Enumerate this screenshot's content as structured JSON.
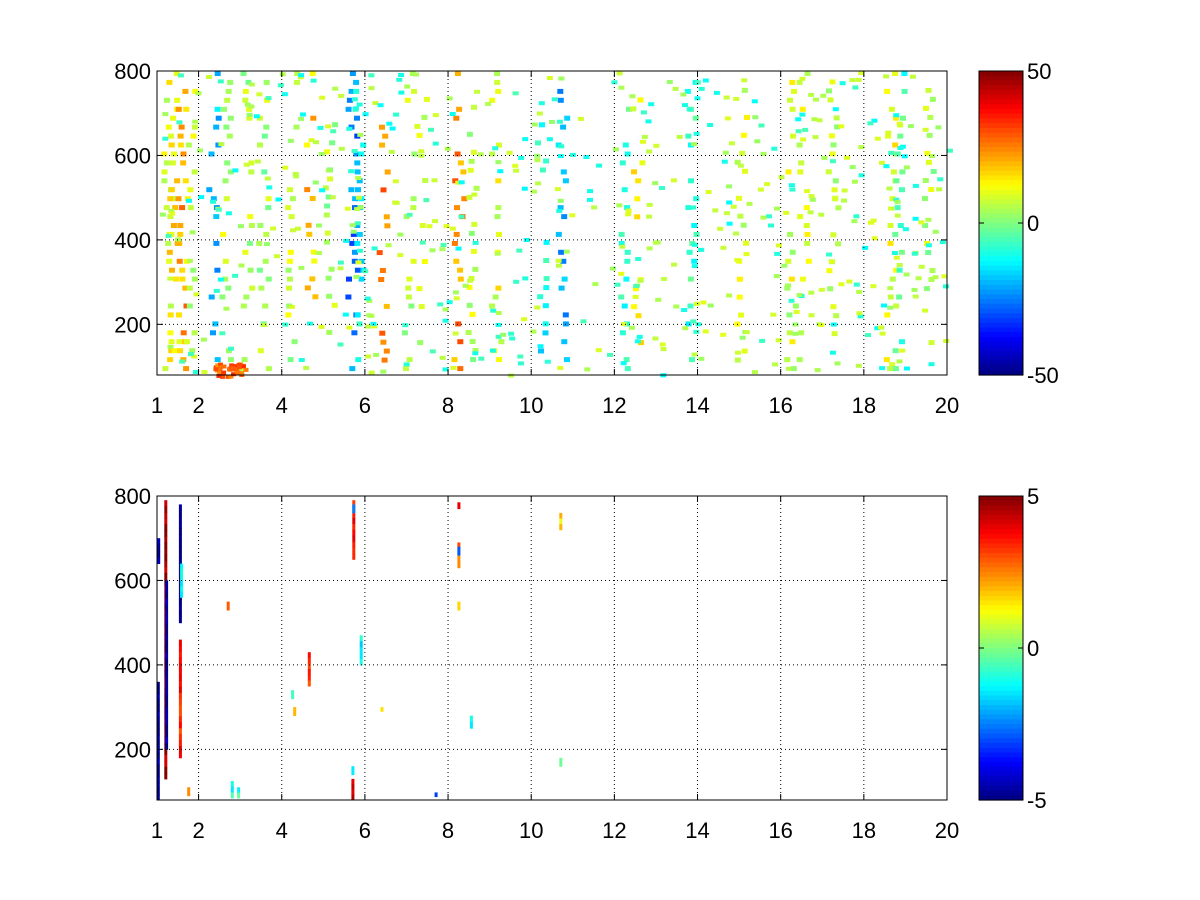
{
  "chart_data": [
    {
      "type": "heatmap",
      "title": "",
      "xlabel": "",
      "ylabel": "",
      "xlim": [
        1,
        20
      ],
      "ylim": [
        80,
        800
      ],
      "grid": true,
      "x_ticks": [
        {
          "value": 1,
          "label": "1"
        },
        {
          "value": 2,
          "label": "2"
        },
        {
          "value": 4,
          "label": "4"
        },
        {
          "value": 6,
          "label": "6"
        },
        {
          "value": 8,
          "label": "8"
        },
        {
          "value": 10,
          "label": "10"
        },
        {
          "value": 12,
          "label": "12"
        },
        {
          "value": 14,
          "label": "14"
        },
        {
          "value": 16,
          "label": "16"
        },
        {
          "value": 18,
          "label": "18"
        },
        {
          "value": 20,
          "label": "20"
        }
      ],
      "y_ticks": [
        {
          "value": 200,
          "label": "200"
        },
        {
          "value": 400,
          "label": "400"
        },
        {
          "value": 600,
          "label": "600"
        },
        {
          "value": 800,
          "label": "800"
        }
      ],
      "colorbar": {
        "colormap": "jet",
        "range": [
          -50,
          50
        ],
        "ticks": [
          {
            "value": 50,
            "label": "50"
          },
          {
            "value": 0,
            "label": "0"
          },
          {
            "value": -50,
            "label": "-50"
          }
        ]
      },
      "columns": [
        {
          "x": 1.2,
          "y_range": [
            80,
            800
          ],
          "value": 10
        },
        {
          "x": 1.35,
          "y_range": [
            80,
            800
          ],
          "value": 14
        },
        {
          "x": 1.55,
          "y_range": [
            80,
            800
          ],
          "value": 22
        },
        {
          "x": 1.75,
          "y_range": [
            80,
            800
          ],
          "value": 8
        },
        {
          "x": 2.3,
          "y_range": [
            80,
            800
          ],
          "value": -18
        },
        {
          "x": 2.6,
          "y_range": [
            80,
            800
          ],
          "value": 6
        },
        {
          "x": 3.1,
          "y_range": [
            80,
            800
          ],
          "value": 5
        },
        {
          "x": 3.5,
          "y_range": [
            80,
            800
          ],
          "value": 4
        },
        {
          "x": 4.2,
          "y_range": [
            80,
            800
          ],
          "value": 6
        },
        {
          "x": 4.65,
          "y_range": [
            250,
            800
          ],
          "value": 18
        },
        {
          "x": 5.1,
          "y_range": [
            80,
            700
          ],
          "value": 4
        },
        {
          "x": 5.65,
          "y_range": [
            80,
            800
          ],
          "value": -25
        },
        {
          "x": 5.8,
          "y_range": [
            80,
            800
          ],
          "value": -12
        },
        {
          "x": 6.4,
          "y_range": [
            100,
            800
          ],
          "value": 24
        },
        {
          "x": 7.0,
          "y_range": [
            80,
            800
          ],
          "value": 5
        },
        {
          "x": 7.3,
          "y_range": [
            120,
            760
          ],
          "value": 8
        },
        {
          "x": 8.2,
          "y_range": [
            80,
            800
          ],
          "value": 24
        },
        {
          "x": 8.5,
          "y_range": [
            80,
            720
          ],
          "value": 6
        },
        {
          "x": 9.1,
          "y_range": [
            80,
            800
          ],
          "value": 10
        },
        {
          "x": 10.2,
          "y_range": [
            100,
            700
          ],
          "value": -12
        },
        {
          "x": 10.7,
          "y_range": [
            80,
            800
          ],
          "value": -20
        },
        {
          "x": 12.2,
          "y_range": [
            80,
            800
          ],
          "value": -8
        },
        {
          "x": 12.5,
          "y_range": [
            120,
            780
          ],
          "value": 12
        },
        {
          "x": 13.8,
          "y_range": [
            80,
            800
          ],
          "value": -8
        },
        {
          "x": 15.0,
          "y_range": [
            100,
            760
          ],
          "value": 8
        },
        {
          "x": 16.2,
          "y_range": [
            80,
            800
          ],
          "value": 8
        },
        {
          "x": 16.5,
          "y_range": [
            80,
            800
          ],
          "value": 10
        },
        {
          "x": 17.2,
          "y_range": [
            120,
            780
          ],
          "value": 6
        },
        {
          "x": 18.6,
          "y_range": [
            80,
            800
          ],
          "value": 12
        },
        {
          "x": 18.8,
          "y_range": [
            80,
            800
          ],
          "value": -6
        },
        {
          "x": 19.5,
          "y_range": [
            120,
            760
          ],
          "value": 5
        }
      ],
      "blob": {
        "x_range": [
          2.3,
          3.1
        ],
        "y_range": [
          80,
          110
        ],
        "value": 28
      }
    },
    {
      "type": "heatmap",
      "title": "",
      "xlabel": "",
      "ylabel": "",
      "xlim": [
        1,
        20
      ],
      "ylim": [
        80,
        800
      ],
      "grid": true,
      "x_ticks": [
        {
          "value": 1,
          "label": "1"
        },
        {
          "value": 2,
          "label": "2"
        },
        {
          "value": 4,
          "label": "4"
        },
        {
          "value": 6,
          "label": "6"
        },
        {
          "value": 8,
          "label": "8"
        },
        {
          "value": 10,
          "label": "10"
        },
        {
          "value": 12,
          "label": "12"
        },
        {
          "value": 14,
          "label": "14"
        },
        {
          "value": 16,
          "label": "16"
        },
        {
          "value": 18,
          "label": "18"
        },
        {
          "value": 20,
          "label": "20"
        }
      ],
      "y_ticks": [
        {
          "value": 200,
          "label": "200"
        },
        {
          "value": 400,
          "label": "400"
        },
        {
          "value": 600,
          "label": "600"
        },
        {
          "value": 800,
          "label": "800"
        }
      ],
      "colorbar": {
        "colormap": "jet",
        "range": [
          -5,
          5
        ],
        "ticks": [
          {
            "value": 5,
            "label": "5"
          },
          {
            "value": 0,
            "label": "0"
          },
          {
            "value": -5,
            "label": "-5"
          }
        ]
      },
      "segments": [
        {
          "x": 1.02,
          "y_range": [
            80,
            360
          ],
          "value": -4.8
        },
        {
          "x": 1.03,
          "y_range": [
            640,
            700
          ],
          "value": -4.5
        },
        {
          "x": 1.2,
          "y_range": [
            130,
            790
          ],
          "value": 4.6
        },
        {
          "x": 1.22,
          "y_range": [
            200,
            600
          ],
          "value": -4.8
        },
        {
          "x": 1.55,
          "y_range": [
            500,
            780
          ],
          "value": -4.9
        },
        {
          "x": 1.58,
          "y_range": [
            560,
            640
          ],
          "value": -1.2
        },
        {
          "x": 1.55,
          "y_range": [
            180,
            460
          ],
          "value": 3.5
        },
        {
          "x": 1.75,
          "y_range": [
            90,
            110
          ],
          "value": 2.5
        },
        {
          "x": 2.7,
          "y_range": [
            530,
            550
          ],
          "value": 3.0
        },
        {
          "x": 2.8,
          "y_range": [
            85,
            125
          ],
          "value": -1.0
        },
        {
          "x": 2.95,
          "y_range": [
            85,
            110
          ],
          "value": -0.8
        },
        {
          "x": 4.25,
          "y_range": [
            320,
            340
          ],
          "value": -1.0
        },
        {
          "x": 4.3,
          "y_range": [
            280,
            300
          ],
          "value": 1.5
        },
        {
          "x": 4.65,
          "y_range": [
            350,
            430
          ],
          "value": 3.2
        },
        {
          "x": 5.7,
          "y_range": [
            80,
            130
          ],
          "value": 4.5
        },
        {
          "x": 5.7,
          "y_range": [
            140,
            160
          ],
          "value": -1.0
        },
        {
          "x": 5.72,
          "y_range": [
            650,
            790
          ],
          "value": 3.6
        },
        {
          "x": 5.72,
          "y_range": [
            760,
            780
          ],
          "value": -3.0
        },
        {
          "x": 5.9,
          "y_range": [
            400,
            470
          ],
          "value": -1.3
        },
        {
          "x": 6.4,
          "y_range": [
            290,
            300
          ],
          "value": 2.0
        },
        {
          "x": 7.7,
          "y_range": [
            88,
            98
          ],
          "value": -3.0
        },
        {
          "x": 8.25,
          "y_range": [
            630,
            690
          ],
          "value": 2.5
        },
        {
          "x": 8.25,
          "y_range": [
            660,
            680
          ],
          "value": -2.5
        },
        {
          "x": 8.25,
          "y_range": [
            530,
            550
          ],
          "value": 1.5
        },
        {
          "x": 8.25,
          "y_range": [
            770,
            785
          ],
          "value": 3.8
        },
        {
          "x": 8.55,
          "y_range": [
            250,
            280
          ],
          "value": -1.0
        },
        {
          "x": 10.7,
          "y_range": [
            720,
            760
          ],
          "value": 1.5
        },
        {
          "x": 10.7,
          "y_range": [
            160,
            180
          ],
          "value": -0.5
        }
      ]
    }
  ]
}
